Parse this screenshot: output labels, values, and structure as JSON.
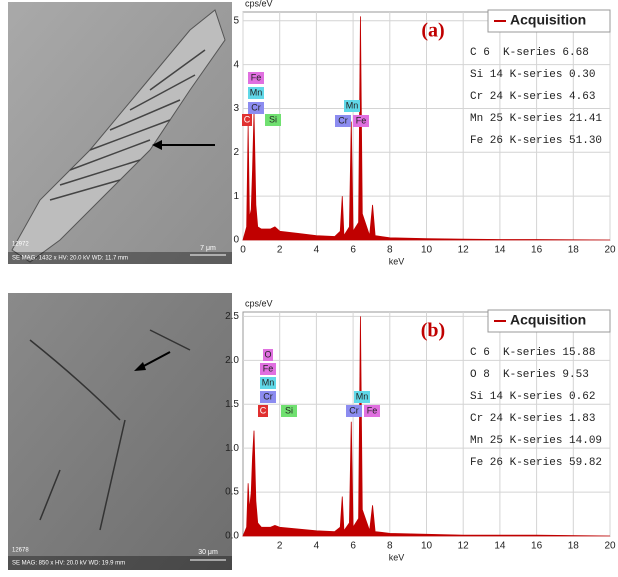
{
  "chart_data": [
    {
      "type": "line",
      "title": "(a)",
      "y_label": "cps/eV",
      "x_label": "keV",
      "x": [
        0,
        0.2,
        0.28,
        0.35,
        0.45,
        0.52,
        0.6,
        0.7,
        0.8,
        1.0,
        1.5,
        1.74,
        2.0,
        3.0,
        4.0,
        5.0,
        5.3,
        5.41,
        5.5,
        5.8,
        5.9,
        6.0,
        6.3,
        6.4,
        6.5,
        6.9,
        7.06,
        7.2,
        8,
        10,
        12,
        14,
        16,
        20
      ],
      "series": [
        {
          "name": "Acquisition",
          "color": "#c00000",
          "values": [
            0,
            0.3,
            2.6,
            0.5,
            0.7,
            1.6,
            2.9,
            0.8,
            0.3,
            0.25,
            0.25,
            0.3,
            0.2,
            0.15,
            0.1,
            0.08,
            0.2,
            1.0,
            0.1,
            0.3,
            2.7,
            0.2,
            0.4,
            5.1,
            0.6,
            0.1,
            0.8,
            0.1,
            0.05,
            0.03,
            0.02,
            0.01,
            0.01,
            0
          ]
        }
      ],
      "xlim": [
        0,
        20
      ],
      "ylim": [
        0,
        5.2
      ],
      "xticks": [
        0,
        2,
        4,
        6,
        8,
        10,
        12,
        14,
        16,
        18,
        20
      ],
      "yticks": [
        0,
        1,
        2,
        3,
        4,
        5
      ],
      "grid": true,
      "legend": "upper right",
      "quant": [
        "C 6  K-series 6.68",
        "Si 14 K-series 0.30",
        "Cr 24 K-series 4.63",
        "Mn 25 K-series 21.41",
        "Fe 26 K-series 51.30"
      ],
      "peak_labels": [
        {
          "label": "Fe",
          "color": "#e070e0"
        },
        {
          "label": "Mn",
          "color": "#60d8e8"
        },
        {
          "label": "Cr",
          "color": "#8c8cf0"
        },
        {
          "label": "C",
          "color": "#e03030"
        },
        {
          "label": "Si",
          "color": "#70e070"
        },
        {
          "label": "Mn",
          "color": "#60d8e8"
        },
        {
          "label": "Cr",
          "color": "#8c8cf0"
        },
        {
          "label": "Fe",
          "color": "#e070e0"
        }
      ]
    },
    {
      "type": "line",
      "title": "(b)",
      "y_label": "cps/eV",
      "x_label": "keV",
      "x": [
        0,
        0.2,
        0.28,
        0.35,
        0.45,
        0.52,
        0.6,
        0.7,
        0.8,
        1.0,
        1.5,
        1.74,
        2.0,
        3.0,
        4.0,
        5.0,
        5.3,
        5.41,
        5.5,
        5.8,
        5.9,
        6.0,
        6.3,
        6.4,
        6.5,
        6.9,
        7.06,
        7.2,
        8,
        10,
        12,
        14,
        16,
        20
      ],
      "series": [
        {
          "name": "Acquisition",
          "color": "#c00000",
          "values": [
            0,
            0.1,
            0.6,
            0.3,
            0.5,
            0.9,
            1.2,
            0.4,
            0.15,
            0.1,
            0.1,
            0.12,
            0.1,
            0.08,
            0.06,
            0.05,
            0.1,
            0.45,
            0.06,
            0.15,
            1.3,
            0.1,
            0.2,
            2.5,
            0.3,
            0.06,
            0.35,
            0.05,
            0.03,
            0.02,
            0.01,
            0.01,
            0.01,
            0
          ]
        }
      ],
      "xlim": [
        0,
        20
      ],
      "ylim": [
        0,
        2.55
      ],
      "xticks": [
        2,
        4,
        6,
        8,
        10,
        12,
        14,
        16,
        18,
        20
      ],
      "yticks": [
        {
          "value": 0,
          "label": "0.0"
        },
        {
          "value": 0.5,
          "label": "0.5"
        },
        {
          "value": 1,
          "label": "1.0"
        },
        {
          "value": 1.5,
          "label": "1.5"
        },
        {
          "value": 2,
          "label": "2.0"
        },
        {
          "value": 2.5,
          "label": "2.5"
        }
      ],
      "grid": true,
      "legend": "upper right",
      "quant": [
        "C 6  K-series 15.88",
        "O 8  K-series 9.53",
        "Si 14 K-series 0.62",
        "Cr 24 K-series 1.83",
        "Mn 25 K-series 14.09",
        "Fe 26 K-series 59.82"
      ],
      "peak_labels": [
        {
          "label": "O",
          "color": "#e070e0"
        },
        {
          "label": "Fe",
          "color": "#e070e0"
        },
        {
          "label": "Mn",
          "color": "#60d8e8"
        },
        {
          "label": "Cr",
          "color": "#8c8cf0"
        },
        {
          "label": "C",
          "color": "#e03030"
        },
        {
          "label": "Si",
          "color": "#70e070"
        },
        {
          "label": "Mn",
          "color": "#60d8e8"
        },
        {
          "label": "Cr",
          "color": "#8c8cf0"
        },
        {
          "label": "Fe",
          "color": "#e070e0"
        }
      ]
    }
  ],
  "images": [
    {
      "id": "12972",
      "info": "SE MAG: 1432 x HV: 20.0 kV WD: 11.7 mm",
      "scale": "7 μm"
    },
    {
      "id": "12678",
      "info": "SE MAG: 850 x HV: 20.0 kV WD: 19.9 mm",
      "scale": "30 μm"
    }
  ]
}
